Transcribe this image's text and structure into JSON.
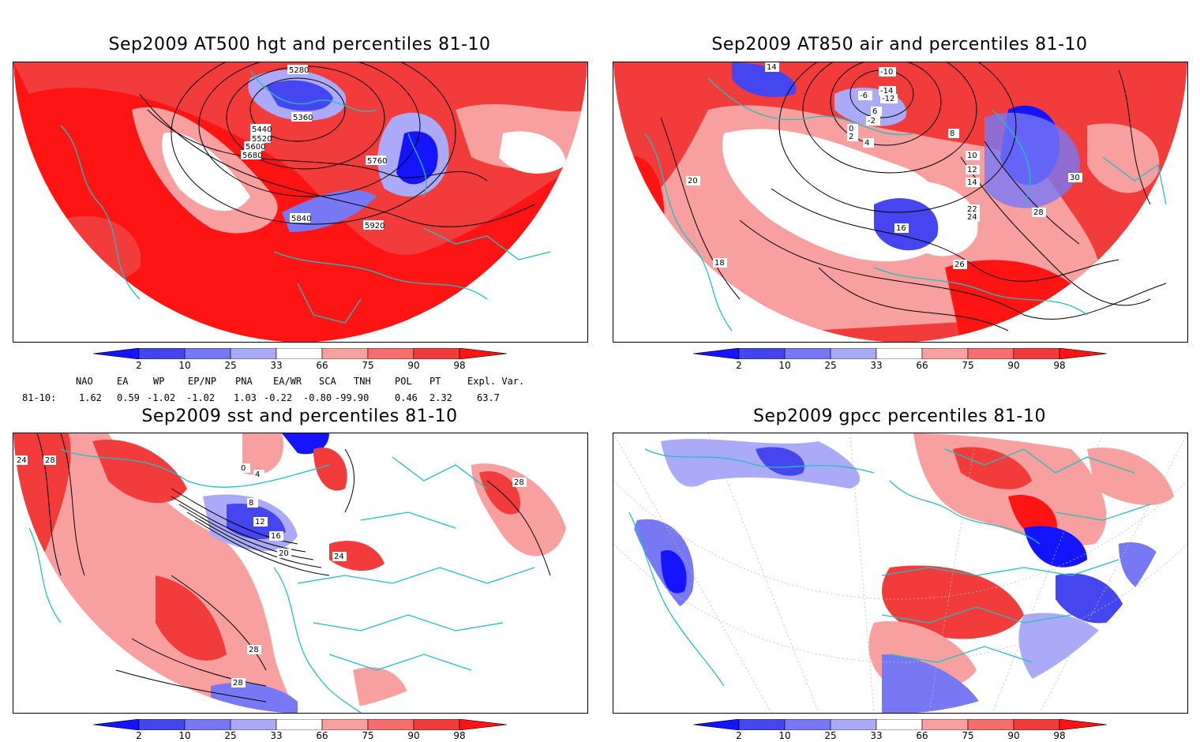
{
  "panels": [
    {
      "title": "Sep2009 AT500 hgt and percentiles 81-10",
      "contour_labels": [
        "5280",
        "5360",
        "5440",
        "5520",
        "5600",
        "5680",
        "5760",
        "5840",
        "5920"
      ]
    },
    {
      "title": "Sep2009 AT850 air and percentiles 81-10",
      "contour_labels": [
        "-10",
        "-14",
        "-12",
        "-6",
        "-2",
        "0",
        "2",
        "4",
        "6",
        "8",
        "10",
        "12",
        "14",
        "16",
        "18",
        "20",
        "22",
        "24",
        "26",
        "28",
        "30"
      ]
    },
    {
      "title": "Sep2009 sst and percentiles 81-10",
      "contour_labels": [
        "0",
        "4",
        "8",
        "12",
        "16",
        "20",
        "24",
        "28"
      ]
    },
    {
      "title": "Sep2009 gpcc percentiles 81-10",
      "contour_labels": []
    }
  ],
  "colorbar": {
    "ticks": [
      "2",
      "10",
      "25",
      "33",
      "66",
      "75",
      "90",
      "98"
    ],
    "colors": {
      "blue_dark": "#1414ff",
      "blue_mid": "#4646f0",
      "blue_light": "#7878f5",
      "blue_pale": "#aaaaf8",
      "white": "#ffffff",
      "red_pale": "#f8a0a0",
      "red_light": "#f56e6e",
      "red_mid": "#f23c3c",
      "red_dark": "#ff1414"
    }
  },
  "indices": {
    "row_label": "81-10:",
    "names": [
      "NAO",
      "EA",
      "WP",
      "EP/NP",
      "PNA",
      "EA/WR",
      "SCA",
      "TNH",
      "POL",
      "PT",
      "Expl. Var."
    ],
    "values": [
      "1.62",
      "0.59",
      "-1.02",
      "-1.02",
      "1.03",
      "-0.22",
      "-0.80",
      "-99.90",
      "0.46",
      "2.32",
      "63.7"
    ]
  },
  "map_colors": {
    "coastline": "#20c0c0",
    "contour": "#000000",
    "grid": "#bbbbbb"
  }
}
